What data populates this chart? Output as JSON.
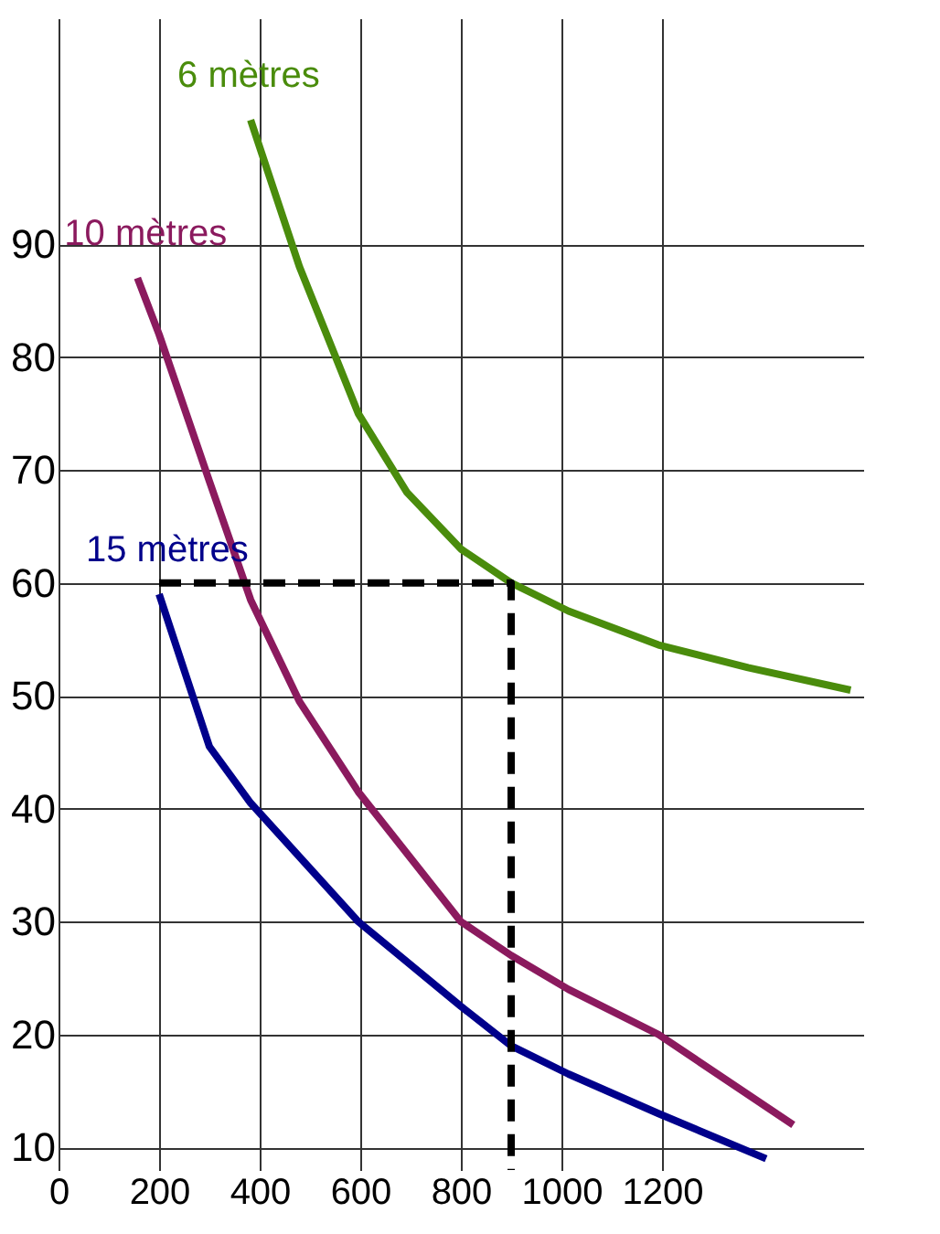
{
  "chart_data": {
    "type": "line",
    "xlim": [
      0,
      1600
    ],
    "ylim": [
      8,
      110
    ],
    "xticks": [
      0,
      200,
      400,
      600,
      800,
      1000,
      1200
    ],
    "yticks": [
      10,
      20,
      30,
      40,
      50,
      60,
      70,
      80,
      90
    ],
    "grid": true,
    "legend": false,
    "marker": "none",
    "line_style": "solid",
    "series": [
      {
        "name": "6 mètres",
        "color": "#4a8c0c",
        "x": [
          382,
          479,
          596,
          693,
          800,
          900,
          1014,
          1193,
          1371,
          1575
        ],
        "values": [
          101,
          88,
          75,
          68,
          63,
          60,
          57.5,
          54.5,
          52.5,
          50.5
        ]
      },
      {
        "name": "10 mètres",
        "color": "#8b1a5e",
        "x": [
          157,
          200,
          300,
          382,
          479,
          596,
          800,
          900,
          1014,
          1193,
          1461
        ],
        "values": [
          87,
          82,
          69,
          58.5,
          49.5,
          41.5,
          30,
          27,
          24,
          20,
          12
        ]
      },
      {
        "name": "15 mètres",
        "color": "#00008b",
        "x": [
          200,
          300,
          382,
          596,
          800,
          900,
          1014,
          1193,
          1407
        ],
        "values": [
          59,
          45.5,
          40.5,
          30,
          22.5,
          19,
          16.5,
          13,
          9
        ]
      },
      {
        "color": "#000000",
        "line_style": "dashed",
        "x": [
          200,
          900,
          900
        ],
        "values": [
          60,
          60,
          8
        ]
      }
    ]
  }
}
